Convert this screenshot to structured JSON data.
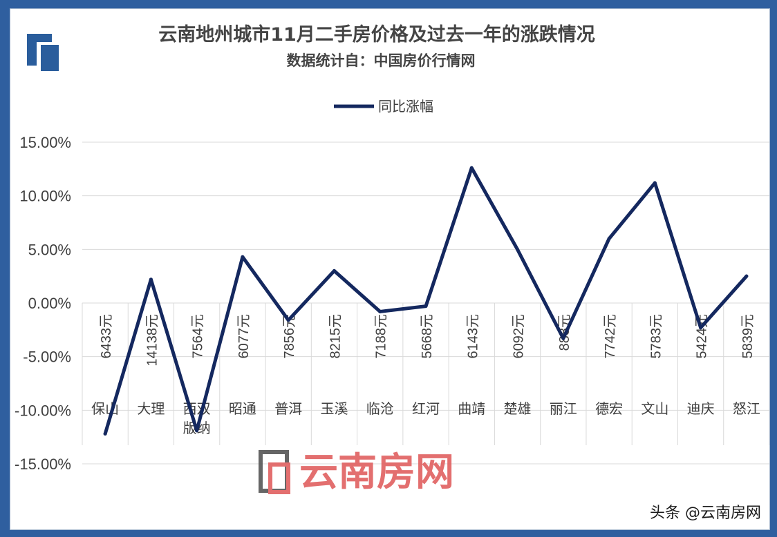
{
  "chart_data": {
    "type": "line",
    "title": "云南地州城市11月二手房价格及过去一年的涨跌情况",
    "subtitle": "数据统计自：中国房价行情网",
    "categories": [
      [
        "保山"
      ],
      [
        "大理"
      ],
      [
        "西双",
        "版纳"
      ],
      [
        "昭通"
      ],
      [
        "普洱"
      ],
      [
        "玉溪"
      ],
      [
        "临沧"
      ],
      [
        "红河"
      ],
      [
        "曲靖"
      ],
      [
        "楚雄"
      ],
      [
        "丽江"
      ],
      [
        "德宏"
      ],
      [
        "文山"
      ],
      [
        "迪庆"
      ],
      [
        "怒江"
      ]
    ],
    "price_labels": [
      "6433元",
      "14138元",
      "7564元",
      "6077元",
      "7856元",
      "8215元",
      "7188元",
      "5668元",
      "6143元",
      "6092元",
      "888元",
      "7742元",
      "5783元",
      "5424元",
      "5839元"
    ],
    "series": [
      {
        "name": "同比涨幅",
        "values": [
          -12.2,
          2.2,
          -11.9,
          4.3,
          -1.6,
          3.0,
          -0.8,
          -0.3,
          12.6,
          5.0,
          -3.3,
          6.0,
          11.2,
          -2.3,
          2.5
        ],
        "color": "#14285f"
      }
    ],
    "y_ticks": [
      "15.00%",
      "10.00%",
      "5.00%",
      "0.00%",
      "-5.00%",
      "-10.00%",
      "-15.00%"
    ],
    "ylim": [
      -15,
      15
    ],
    "grid": true,
    "legend_position": "top-center"
  },
  "watermark": {
    "text": "云南房网",
    "color": "#e06060"
  },
  "credit": "头条 @云南房网"
}
